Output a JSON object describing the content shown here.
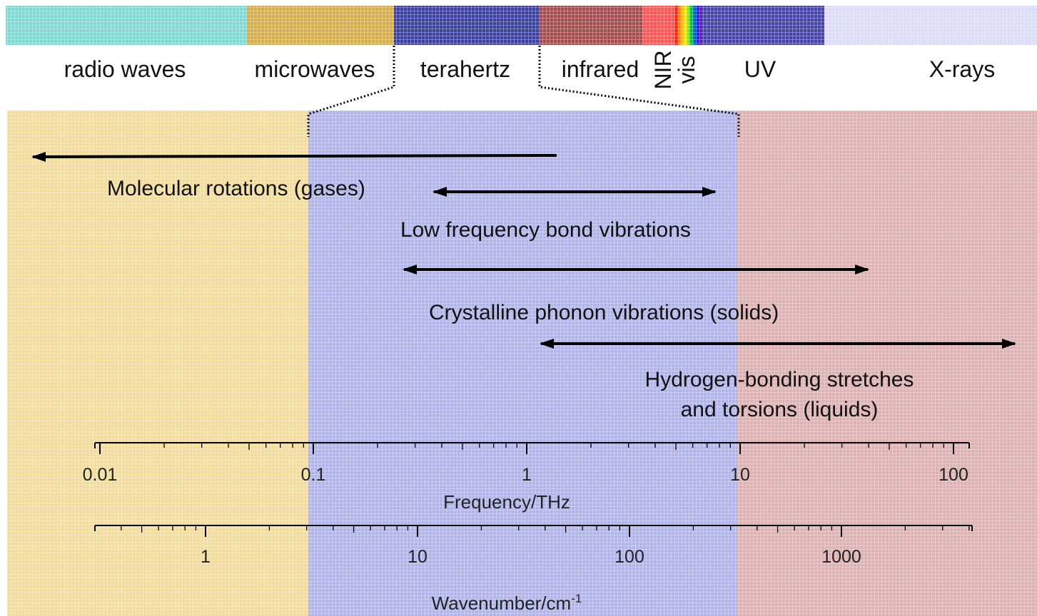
{
  "spectrum": {
    "bands": [
      "radio waves",
      "microwaves",
      "terahertz",
      "infrared",
      "NIR",
      "vis",
      "UV",
      "X-rays"
    ]
  },
  "processes": [
    {
      "lines": [
        "Molecular rotations (gases)"
      ]
    },
    {
      "lines": [
        "Low frequency bond vibrations"
      ]
    },
    {
      "lines": [
        "Crystalline phonon vibrations (solids)"
      ]
    },
    {
      "lines": [
        "Hydrogen-bonding stretches",
        "and torsions (liquids)"
      ]
    }
  ],
  "axes": [
    {
      "title": "Frequency/THz",
      "ticks": [
        "0.01",
        "0.1",
        "1",
        "10",
        "100"
      ]
    },
    {
      "title": "Wavenumber/cm",
      "title_sup": "-1",
      "ticks": [
        "1",
        "10",
        "100",
        "1000"
      ]
    }
  ]
}
